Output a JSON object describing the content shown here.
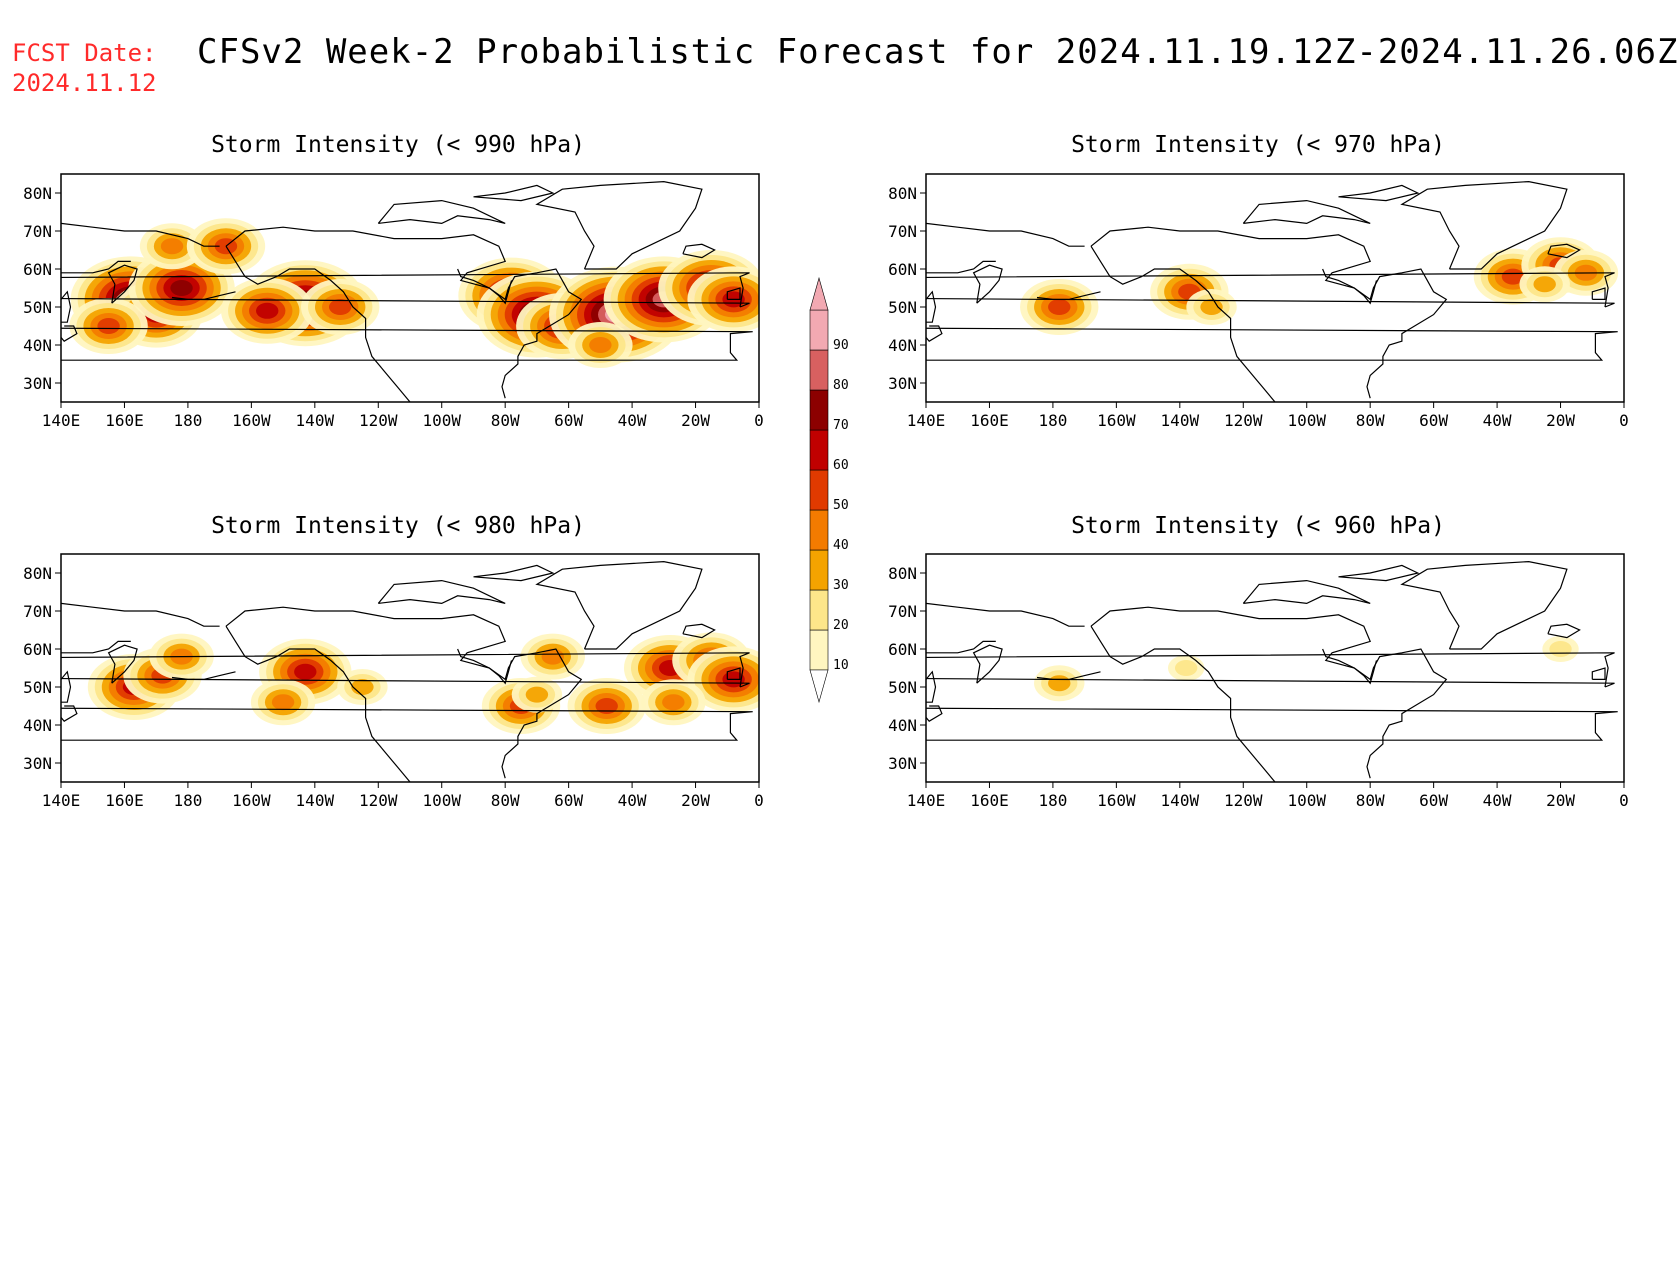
{
  "header": {
    "fcst_label": "FCST Date:",
    "fcst_date": "2024.11.12",
    "title": "CFSv2 Week-2 Probabilistic Forecast for 2024.11.19.12Z-2024.11.26.06Z"
  },
  "axes": {
    "lon_labels": [
      "140E",
      "160E",
      "180",
      "160W",
      "140W",
      "120W",
      "100W",
      "80W",
      "60W",
      "40W",
      "20W",
      "0"
    ],
    "lat_labels": [
      "80N",
      "70N",
      "60N",
      "50N",
      "40N",
      "30N"
    ]
  },
  "panels": [
    {
      "id": "p990",
      "title": "Storm Intensity (< 990 hPa)",
      "blobs": [
        {
          "lon": 162,
          "lat": 52,
          "level": 80
        },
        {
          "lon": 170,
          "lat": 48,
          "level": 60
        },
        {
          "lon": 178,
          "lat": 55,
          "level": 70
        },
        {
          "lon": 155,
          "lat": 45,
          "level": 50
        },
        {
          "lon": -143,
          "lat": 51,
          "level": 80
        },
        {
          "lon": -155,
          "lat": 49,
          "level": 60
        },
        {
          "lon": -132,
          "lat": 50,
          "level": 50
        },
        {
          "lon": -78,
          "lat": 53,
          "level": 70
        },
        {
          "lon": -70,
          "lat": 48,
          "level": 80
        },
        {
          "lon": -62,
          "lat": 45,
          "level": 60
        },
        {
          "lon": -45,
          "lat": 48,
          "level": 90
        },
        {
          "lon": -30,
          "lat": 52,
          "level": 80
        },
        {
          "lon": -15,
          "lat": 55,
          "level": 70
        },
        {
          "lon": -8,
          "lat": 52,
          "level": 60
        },
        {
          "lon": -50,
          "lat": 40,
          "level": 40
        },
        {
          "lon": 175,
          "lat": 66,
          "level": 40
        },
        {
          "lon": -168,
          "lat": 66,
          "level": 50
        }
      ]
    },
    {
      "id": "p970",
      "title": "Storm Intensity (< 970 hPa)",
      "blobs": [
        {
          "lon": -178,
          "lat": 50,
          "level": 50
        },
        {
          "lon": -137,
          "lat": 54,
          "level": 50
        },
        {
          "lon": -130,
          "lat": 50,
          "level": 30
        },
        {
          "lon": -35,
          "lat": 58,
          "level": 50
        },
        {
          "lon": -20,
          "lat": 61,
          "level": 50
        },
        {
          "lon": -12,
          "lat": 59,
          "level": 40
        },
        {
          "lon": -25,
          "lat": 56,
          "level": 30
        }
      ]
    },
    {
      "id": "p980",
      "title": "Storm Intensity (< 980 hPa)",
      "blobs": [
        {
          "lon": 163,
          "lat": 50,
          "level": 60
        },
        {
          "lon": 172,
          "lat": 53,
          "level": 50
        },
        {
          "lon": 178,
          "lat": 58,
          "level": 40
        },
        {
          "lon": -143,
          "lat": 54,
          "level": 60
        },
        {
          "lon": -150,
          "lat": 46,
          "level": 40
        },
        {
          "lon": -125,
          "lat": 50,
          "level": 30
        },
        {
          "lon": -75,
          "lat": 45,
          "level": 50
        },
        {
          "lon": -65,
          "lat": 58,
          "level": 40
        },
        {
          "lon": -70,
          "lat": 48,
          "level": 30
        },
        {
          "lon": -48,
          "lat": 45,
          "level": 50
        },
        {
          "lon": -28,
          "lat": 55,
          "level": 60
        },
        {
          "lon": -15,
          "lat": 57,
          "level": 50
        },
        {
          "lon": -8,
          "lat": 52,
          "level": 60
        },
        {
          "lon": -27,
          "lat": 46,
          "level": 40
        }
      ]
    },
    {
      "id": "p960",
      "title": "Storm Intensity (< 960 hPa)",
      "blobs": [
        {
          "lon": -178,
          "lat": 51,
          "level": 30
        },
        {
          "lon": -138,
          "lat": 55,
          "level": 20
        },
        {
          "lon": -20,
          "lat": 60,
          "level": 20
        }
      ]
    }
  ],
  "colorbar": {
    "levels": [
      10,
      20,
      30,
      40,
      50,
      60,
      70,
      80,
      90
    ],
    "colors": [
      "#fff6c0",
      "#fde68a",
      "#f4a300",
      "#f37b00",
      "#e03a00",
      "#c00000",
      "#8c0000",
      "#d86060",
      "#f2a9b2"
    ],
    "labels": [
      "10",
      "20",
      "30",
      "40",
      "50",
      "60",
      "70",
      "80",
      "90"
    ]
  }
}
